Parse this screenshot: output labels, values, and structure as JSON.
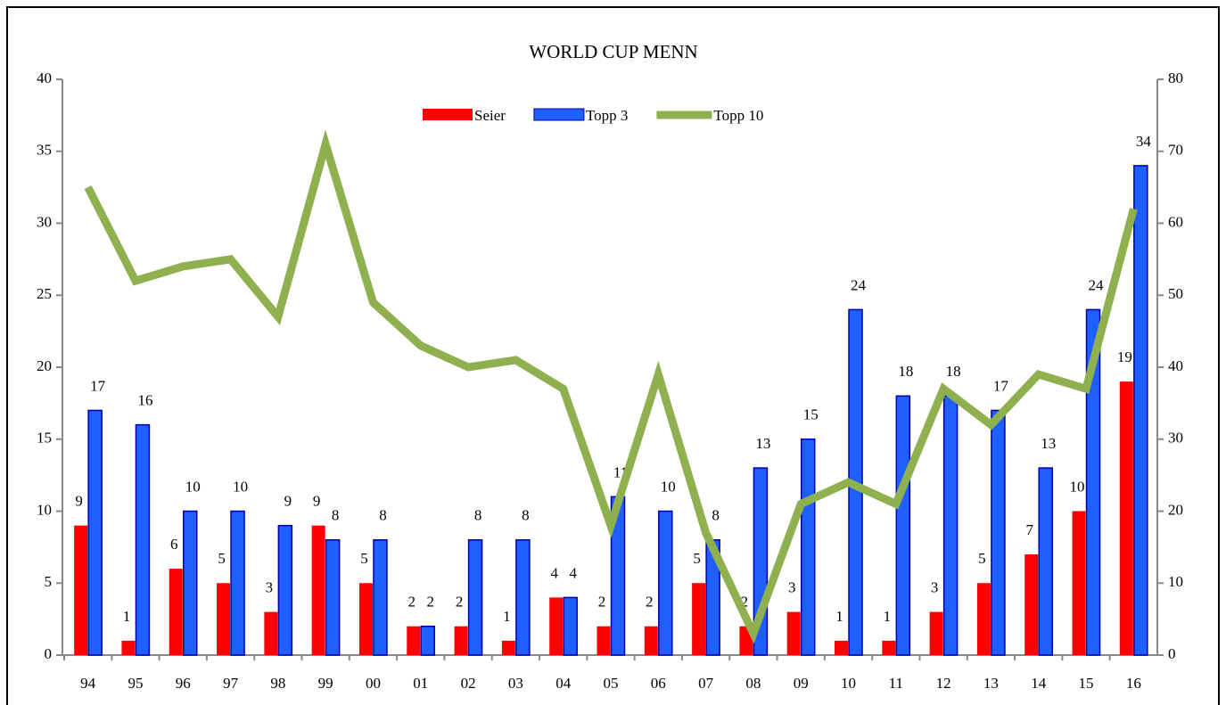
{
  "chart_data": {
    "type": "bar_line",
    "title": "WORLD CUP MENN",
    "categories": [
      "94",
      "95",
      "96",
      "97",
      "98",
      "99",
      "00",
      "01",
      "02",
      "03",
      "04",
      "05",
      "06",
      "07",
      "08",
      "09",
      "10",
      "11",
      "12",
      "13",
      "14",
      "15",
      "16"
    ],
    "series": [
      {
        "name": "Seier",
        "color": "#ff0000",
        "values": [
          9,
          1,
          6,
          5,
          3,
          9,
          5,
          2,
          2,
          1,
          4,
          2,
          2,
          5,
          2,
          3,
          1,
          1,
          3,
          5,
          7,
          10,
          19
        ]
      },
      {
        "name": "Topp 3",
        "color": "#1f5fff",
        "values": [
          17,
          16,
          10,
          10,
          9,
          8,
          8,
          2,
          8,
          8,
          4,
          11,
          10,
          8,
          13,
          15,
          24,
          18,
          18,
          17,
          13,
          24,
          34
        ]
      },
      {
        "name": "Topp 10",
        "color": "#8fb04e",
        "axis": "y2",
        "values": [
          65,
          52,
          54,
          55,
          47,
          71,
          49,
          43,
          40,
          41,
          37,
          18,
          39,
          17,
          3,
          21,
          24,
          21,
          37,
          32,
          39,
          37,
          62
        ]
      }
    ],
    "ylim": [
      0,
      40
    ],
    "yticks": [
      0,
      5,
      10,
      15,
      20,
      25,
      30,
      35,
      40
    ],
    "y2lim": [
      0,
      80
    ],
    "y2ticks": [
      0,
      10,
      20,
      30,
      40,
      50,
      60,
      70,
      80
    ]
  }
}
